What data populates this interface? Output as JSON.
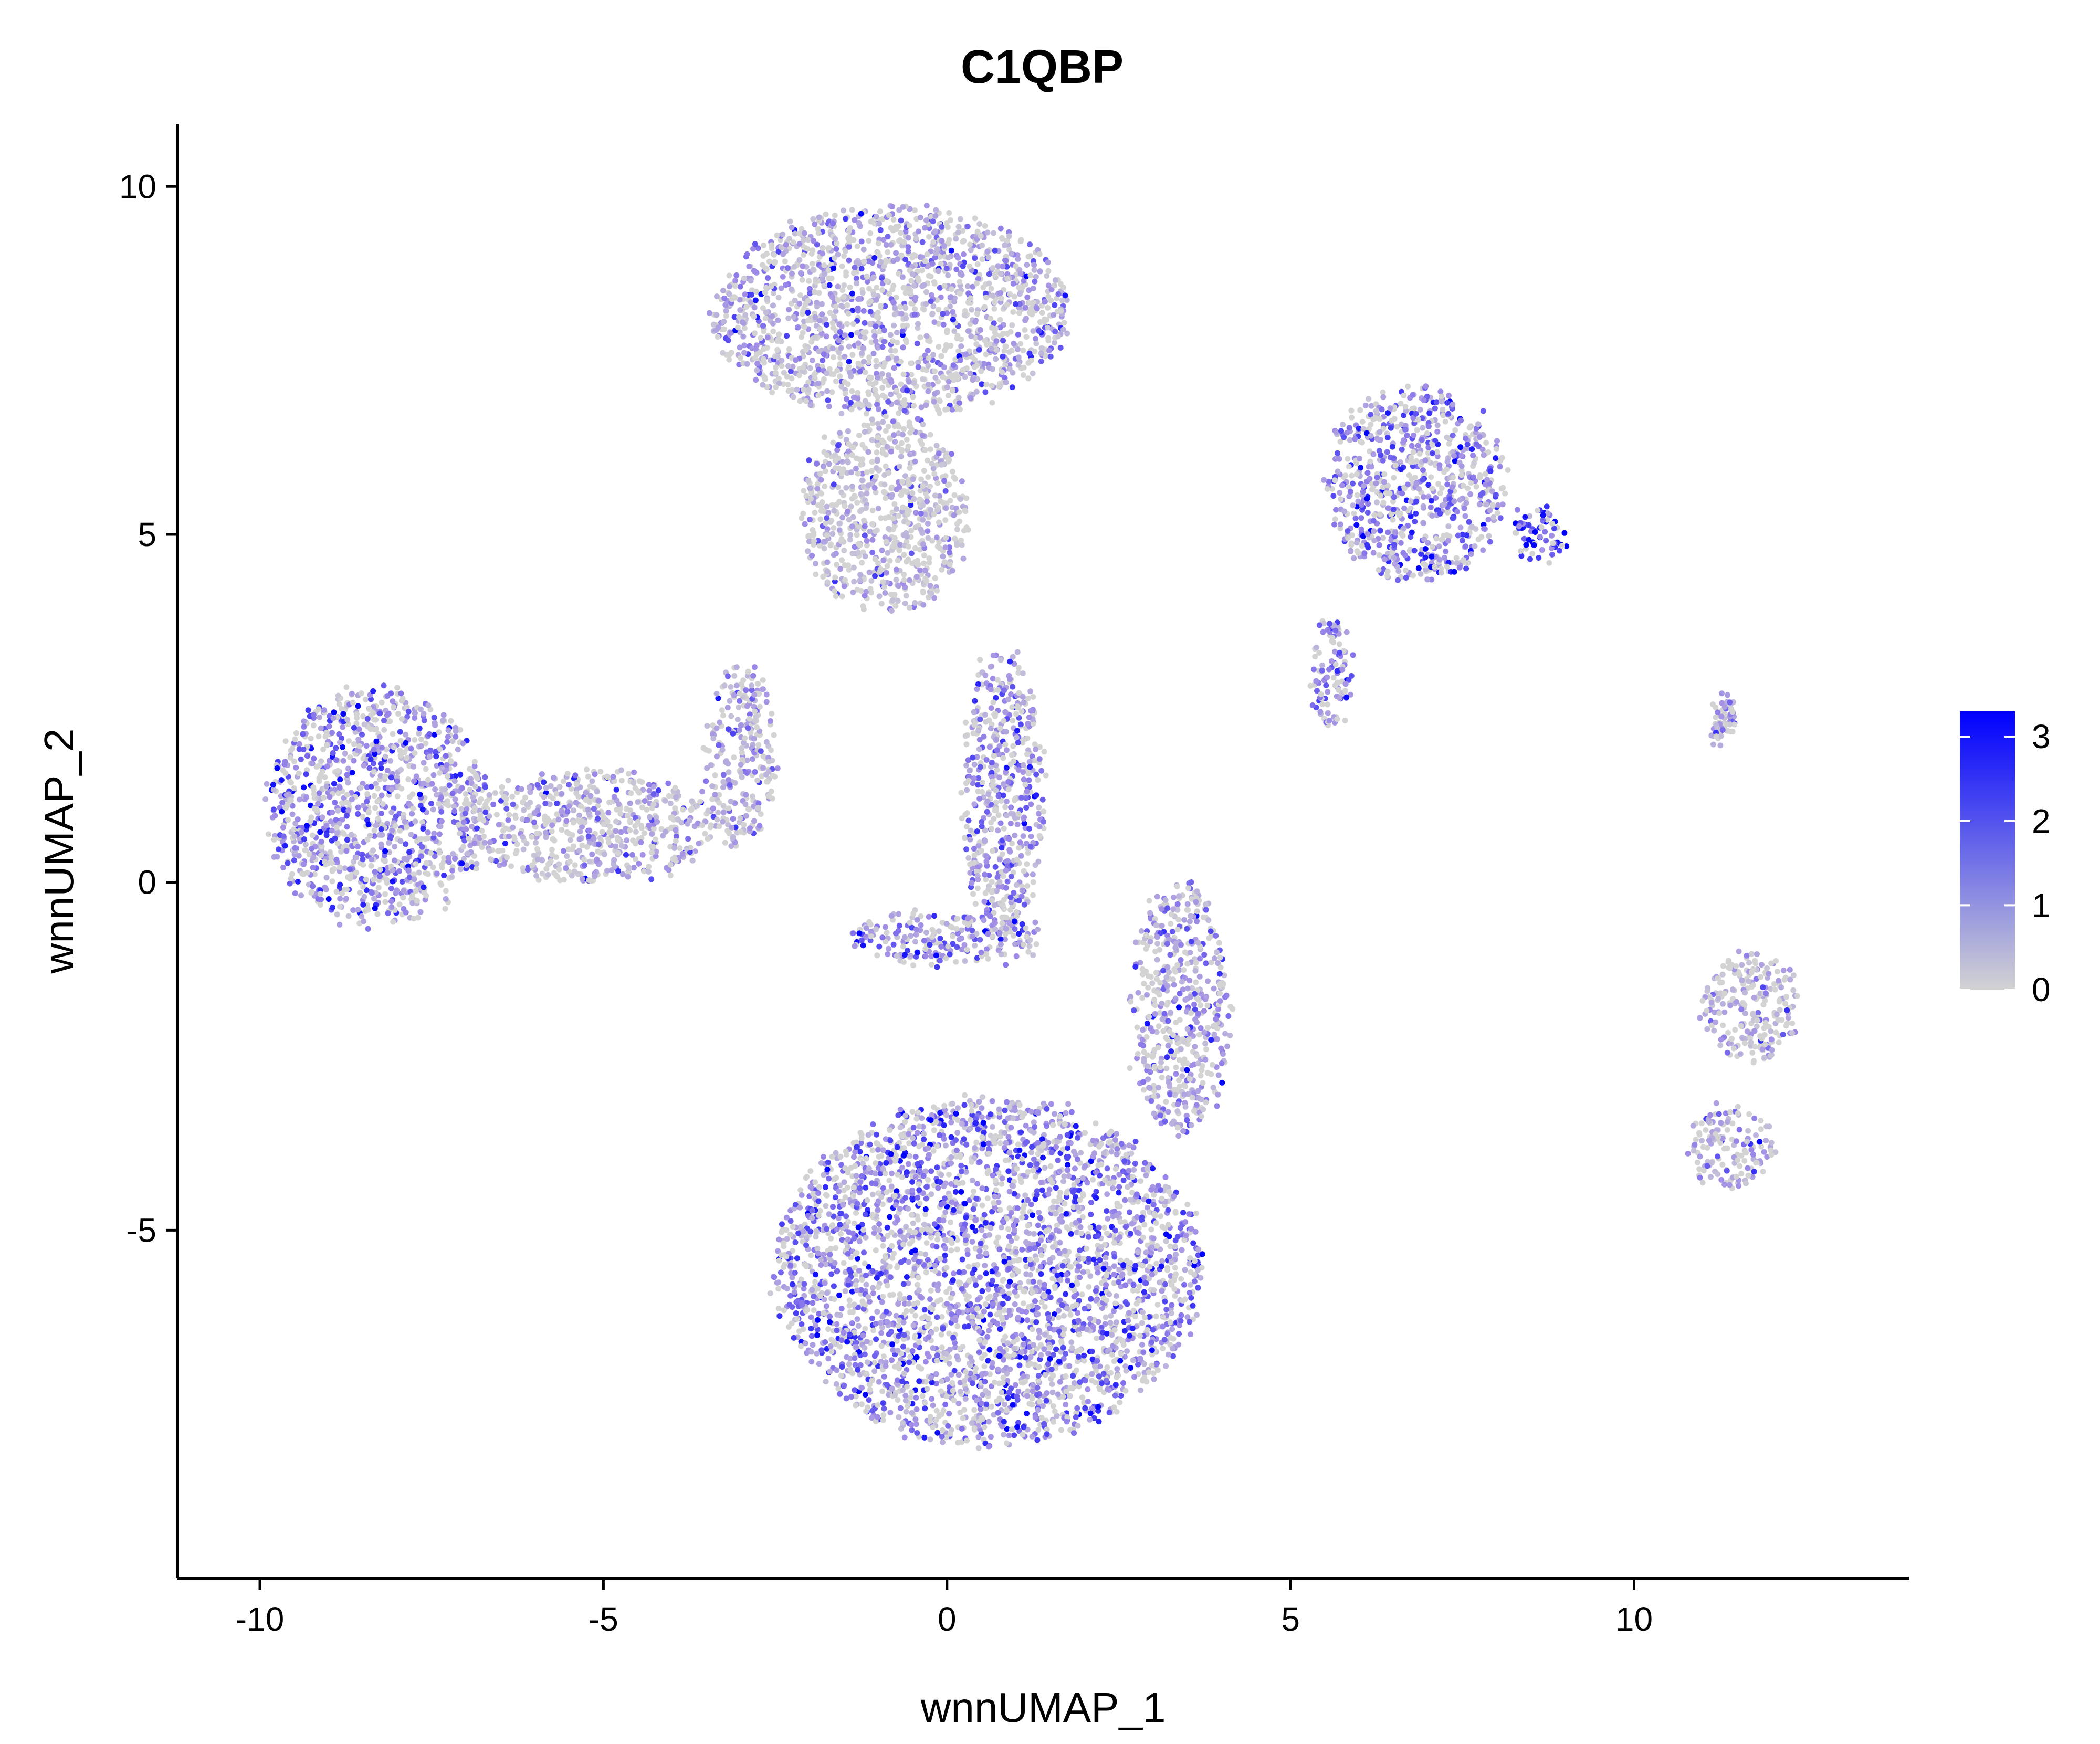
{
  "chart_data": {
    "type": "scatter",
    "title": "C1QBP",
    "xlabel": "wnnUMAP_1",
    "ylabel": "wnnUMAP_2",
    "xlim": [
      -11.2,
      14.0
    ],
    "ylim": [
      -10.0,
      10.9
    ],
    "x_ticks": [
      -10,
      -5,
      0,
      5,
      10
    ],
    "y_ticks": [
      -5,
      0,
      5,
      10
    ],
    "x_tick_labels": [
      "-10",
      "-5",
      "0",
      "5",
      "10"
    ],
    "y_tick_labels": [
      "-5",
      "0",
      "5",
      "10"
    ],
    "grid": false,
    "legend": {
      "position": "right",
      "type": "continuous",
      "min": 0,
      "max": 3.3,
      "ticks": [
        0,
        1,
        2,
        3
      ],
      "tick_labels": [
        "0",
        "1",
        "2",
        "3"
      ],
      "color_low": "#D3D3D3",
      "color_high": "#0000FF"
    },
    "clusters": [
      {
        "id": "top-center",
        "cx": -0.8,
        "cy": 8.2,
        "rx": 2.6,
        "ry": 1.5,
        "mean_expression": 1.1
      },
      {
        "id": "center-stem",
        "cx": -0.9,
        "cy": 5.3,
        "rx": 1.2,
        "ry": 1.4,
        "mean_expression": 0.6
      },
      {
        "id": "left-lobe",
        "cx": -8.3,
        "cy": 1.1,
        "rx": 1.6,
        "ry": 1.7,
        "mean_expression": 1.5
      },
      {
        "id": "left-arm",
        "cx": -5.2,
        "cy": 0.8,
        "rx": 1.8,
        "ry": 0.8,
        "mean_expression": 1.0
      },
      {
        "id": "mid-left-stem",
        "cx": -3.0,
        "cy": 1.8,
        "rx": 0.5,
        "ry": 1.3,
        "mean_expression": 0.8
      },
      {
        "id": "mid-vertical",
        "cx": 0.8,
        "cy": 1.3,
        "rx": 0.6,
        "ry": 2.0,
        "mean_expression": 1.4
      },
      {
        "id": "mid-bridge",
        "cx": 0.0,
        "cy": -0.8,
        "rx": 1.4,
        "ry": 0.4,
        "mean_expression": 1.5
      },
      {
        "id": "right-arm",
        "cx": 3.4,
        "cy": -1.8,
        "rx": 0.7,
        "ry": 1.8,
        "mean_expression": 1.1
      },
      {
        "id": "lower-body",
        "cx": 0.6,
        "cy": -5.6,
        "rx": 3.1,
        "ry": 2.5,
        "mean_expression": 1.6
      },
      {
        "id": "right-top",
        "cx": 6.8,
        "cy": 5.7,
        "rx": 1.3,
        "ry": 1.4,
        "mean_expression": 1.6
      },
      {
        "id": "right-top-tip",
        "cx": 8.6,
        "cy": 5.0,
        "rx": 0.4,
        "ry": 0.4,
        "mean_expression": 2.6
      },
      {
        "id": "right-top-tail",
        "cx": 5.6,
        "cy": 3.0,
        "rx": 0.3,
        "ry": 0.8,
        "mean_expression": 1.4
      },
      {
        "id": "far-right-upper",
        "cx": 11.3,
        "cy": 2.3,
        "rx": 0.15,
        "ry": 0.4,
        "mean_expression": 1.2
      },
      {
        "id": "far-right-mid",
        "cx": 11.7,
        "cy": -1.8,
        "rx": 0.7,
        "ry": 0.8,
        "mean_expression": 0.8
      },
      {
        "id": "far-right-low",
        "cx": 11.4,
        "cy": -3.8,
        "rx": 0.6,
        "ry": 0.6,
        "mean_expression": 0.9
      }
    ]
  }
}
